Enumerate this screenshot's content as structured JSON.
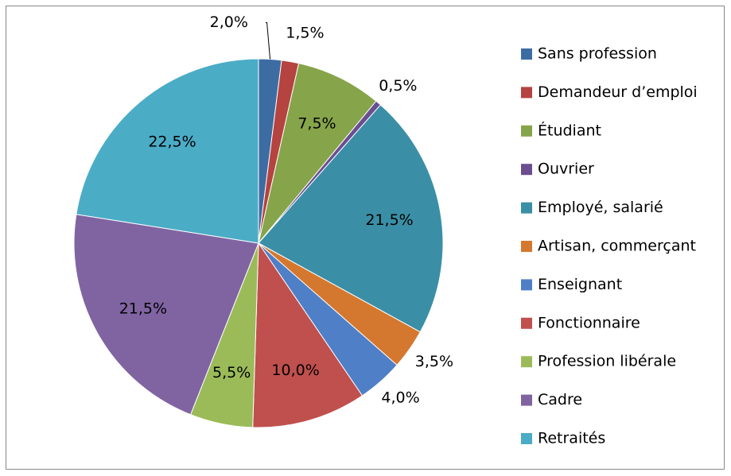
{
  "chart_data": {
    "type": "pie",
    "categories": [
      "Sans profession",
      "Demandeur d’emploi",
      "Étudiant",
      "Ouvrier",
      "Employé, salarié",
      "Artisan, commerçant",
      "Enseignant",
      "Fonctionnaire",
      "Profession libérale",
      "Cadre",
      "Retraités"
    ],
    "values": [
      2.0,
      1.5,
      7.5,
      0.5,
      21.5,
      3.5,
      4.0,
      10.0,
      5.5,
      21.5,
      22.5
    ],
    "value_labels": [
      "2,0%",
      "1,5%",
      "7,5%",
      "0,5%",
      "21,5%",
      "3,5%",
      "4,0%",
      "10,0%",
      "5,5%",
      "21,5%",
      "22,5%"
    ],
    "colors": [
      "#3d6ca3",
      "#b5433f",
      "#86a44a",
      "#6a4e90",
      "#3a8fa6",
      "#d5782f",
      "#4f7fc6",
      "#c0504d",
      "#9bbb59",
      "#8064a2",
      "#4bacc6"
    ],
    "legend": "right"
  }
}
